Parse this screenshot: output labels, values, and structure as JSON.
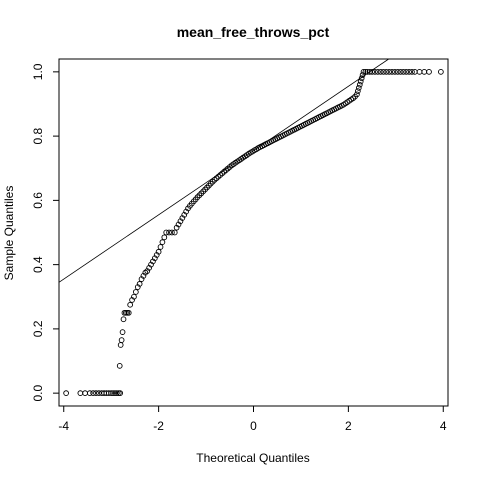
{
  "chart_data": {
    "type": "scatter",
    "subtype": "qq-normal",
    "title": "mean_free_throws_pct",
    "xlabel": "Theoretical Quantiles",
    "ylabel": "Sample Quantiles",
    "xlim": [
      -4.1,
      4.1
    ],
    "ylim": [
      -0.04,
      1.04
    ],
    "x_ticks": [
      -4,
      -2,
      0,
      2,
      4
    ],
    "y_ticks": [
      0.0,
      0.2,
      0.4,
      0.6,
      0.8,
      1.0
    ],
    "x_tick_labels": [
      "-4",
      "-2",
      "0",
      "2",
      "4"
    ],
    "y_tick_labels": [
      "0.0",
      "0.2",
      "0.4",
      "0.6",
      "0.8",
      "1.0"
    ],
    "reference_line": {
      "intercept": 0.755,
      "slope": 0.1
    },
    "series": [
      {
        "points": [
          [
            -3.95,
            0.0
          ],
          [
            -3.65,
            0.0
          ],
          [
            -3.55,
            0.0
          ],
          [
            -3.45,
            0.0
          ],
          [
            -3.38,
            0.0
          ],
          [
            -3.32,
            0.0
          ],
          [
            -3.26,
            0.0
          ],
          [
            -3.2,
            0.0
          ],
          [
            -3.15,
            0.0
          ],
          [
            -3.1,
            0.0
          ],
          [
            -3.05,
            0.0
          ],
          [
            -3.0,
            0.0
          ],
          [
            -2.96,
            0.0
          ],
          [
            -2.92,
            0.0
          ],
          [
            -2.88,
            0.0
          ],
          [
            -2.84,
            0.0
          ],
          [
            -2.81,
            0.0
          ],
          [
            -2.82,
            0.085
          ],
          [
            -2.8,
            0.15
          ],
          [
            -2.78,
            0.165
          ],
          [
            -2.76,
            0.19
          ],
          [
            -2.74,
            0.23
          ],
          [
            -2.72,
            0.25
          ],
          [
            -2.69,
            0.25
          ],
          [
            -2.66,
            0.25
          ],
          [
            -2.63,
            0.25
          ],
          [
            -2.6,
            0.275
          ],
          [
            -2.56,
            0.29
          ],
          [
            -2.52,
            0.3
          ],
          [
            -2.48,
            0.315
          ],
          [
            -2.44,
            0.33
          ],
          [
            -2.4,
            0.34
          ],
          [
            -2.36,
            0.355
          ],
          [
            -2.32,
            0.365
          ],
          [
            -2.28,
            0.375
          ],
          [
            -2.24,
            0.38
          ],
          [
            -2.2,
            0.39
          ],
          [
            -2.16,
            0.4
          ],
          [
            -2.12,
            0.41
          ],
          [
            -2.08,
            0.42
          ],
          [
            -2.04,
            0.43
          ],
          [
            -2.0,
            0.44
          ],
          [
            -1.96,
            0.455
          ],
          [
            -1.92,
            0.47
          ],
          [
            -1.88,
            0.485
          ],
          [
            -1.84,
            0.5
          ],
          [
            -1.78,
            0.5
          ],
          [
            -1.72,
            0.5
          ],
          [
            -1.66,
            0.5
          ],
          [
            -1.62,
            0.515
          ],
          [
            -1.58,
            0.525
          ],
          [
            -1.54,
            0.535
          ],
          [
            -1.5,
            0.545
          ],
          [
            -1.46,
            0.555
          ],
          [
            -1.42,
            0.565
          ],
          [
            -1.38,
            0.575
          ],
          [
            -1.34,
            0.583
          ],
          [
            -1.3,
            0.59
          ],
          [
            -1.26,
            0.597
          ],
          [
            -1.22,
            0.603
          ],
          [
            -1.18,
            0.61
          ],
          [
            -1.14,
            0.616
          ],
          [
            -1.1,
            0.622
          ],
          [
            -1.06,
            0.628
          ],
          [
            -1.02,
            0.634
          ],
          [
            -0.98,
            0.64
          ],
          [
            -0.94,
            0.646
          ],
          [
            -0.9,
            0.652
          ],
          [
            -0.86,
            0.658
          ],
          [
            -0.82,
            0.664
          ],
          [
            -0.78,
            0.669
          ],
          [
            -0.74,
            0.674
          ],
          [
            -0.7,
            0.679
          ],
          [
            -0.66,
            0.684
          ],
          [
            -0.62,
            0.689
          ],
          [
            -0.58,
            0.694
          ],
          [
            -0.54,
            0.699
          ],
          [
            -0.5,
            0.704
          ],
          [
            -0.46,
            0.709
          ],
          [
            -0.42,
            0.713
          ],
          [
            -0.38,
            0.717
          ],
          [
            -0.34,
            0.721
          ],
          [
            -0.3,
            0.725
          ],
          [
            -0.26,
            0.729
          ],
          [
            -0.22,
            0.733
          ],
          [
            -0.18,
            0.737
          ],
          [
            -0.14,
            0.741
          ],
          [
            -0.1,
            0.745
          ],
          [
            -0.06,
            0.749
          ],
          [
            -0.02,
            0.752
          ],
          [
            0.02,
            0.756
          ],
          [
            0.06,
            0.759
          ],
          [
            0.1,
            0.763
          ],
          [
            0.14,
            0.766
          ],
          [
            0.18,
            0.769
          ],
          [
            0.22,
            0.772
          ],
          [
            0.26,
            0.775
          ],
          [
            0.3,
            0.778
          ],
          [
            0.34,
            0.781
          ],
          [
            0.38,
            0.784
          ],
          [
            0.42,
            0.787
          ],
          [
            0.46,
            0.79
          ],
          [
            0.5,
            0.793
          ],
          [
            0.54,
            0.796
          ],
          [
            0.58,
            0.799
          ],
          [
            0.62,
            0.802
          ],
          [
            0.66,
            0.805
          ],
          [
            0.7,
            0.808
          ],
          [
            0.74,
            0.811
          ],
          [
            0.78,
            0.814
          ],
          [
            0.82,
            0.817
          ],
          [
            0.86,
            0.82
          ],
          [
            0.9,
            0.823
          ],
          [
            0.94,
            0.826
          ],
          [
            0.98,
            0.829
          ],
          [
            1.02,
            0.832
          ],
          [
            1.06,
            0.835
          ],
          [
            1.1,
            0.838
          ],
          [
            1.14,
            0.841
          ],
          [
            1.18,
            0.844
          ],
          [
            1.22,
            0.847
          ],
          [
            1.26,
            0.85
          ],
          [
            1.3,
            0.853
          ],
          [
            1.34,
            0.856
          ],
          [
            1.38,
            0.859
          ],
          [
            1.42,
            0.862
          ],
          [
            1.46,
            0.865
          ],
          [
            1.5,
            0.868
          ],
          [
            1.54,
            0.871
          ],
          [
            1.58,
            0.874
          ],
          [
            1.62,
            0.877
          ],
          [
            1.66,
            0.88
          ],
          [
            1.7,
            0.883
          ],
          [
            1.74,
            0.886
          ],
          [
            1.78,
            0.889
          ],
          [
            1.82,
            0.892
          ],
          [
            1.86,
            0.895
          ],
          [
            1.9,
            0.898
          ],
          [
            1.94,
            0.902
          ],
          [
            1.98,
            0.906
          ],
          [
            2.02,
            0.91
          ],
          [
            2.06,
            0.914
          ],
          [
            2.1,
            0.918
          ],
          [
            2.14,
            0.923
          ],
          [
            2.18,
            0.93
          ],
          [
            2.2,
            0.94
          ],
          [
            2.22,
            0.95
          ],
          [
            2.24,
            0.96
          ],
          [
            2.26,
            0.97
          ],
          [
            2.28,
            0.98
          ],
          [
            2.3,
            0.99
          ],
          [
            2.32,
            1.0
          ],
          [
            2.36,
            1.0
          ],
          [
            2.4,
            1.0
          ],
          [
            2.45,
            1.0
          ],
          [
            2.5,
            1.0
          ],
          [
            2.56,
            1.0
          ],
          [
            2.62,
            1.0
          ],
          [
            2.68,
            1.0
          ],
          [
            2.74,
            1.0
          ],
          [
            2.8,
            1.0
          ],
          [
            2.86,
            1.0
          ],
          [
            2.92,
            1.0
          ],
          [
            2.98,
            1.0
          ],
          [
            3.04,
            1.0
          ],
          [
            3.1,
            1.0
          ],
          [
            3.16,
            1.0
          ],
          [
            3.22,
            1.0
          ],
          [
            3.28,
            1.0
          ],
          [
            3.34,
            1.0
          ],
          [
            3.4,
            1.0
          ],
          [
            3.5,
            1.0
          ],
          [
            3.6,
            1.0
          ],
          [
            3.7,
            1.0
          ],
          [
            3.95,
            1.0
          ]
        ]
      }
    ]
  }
}
